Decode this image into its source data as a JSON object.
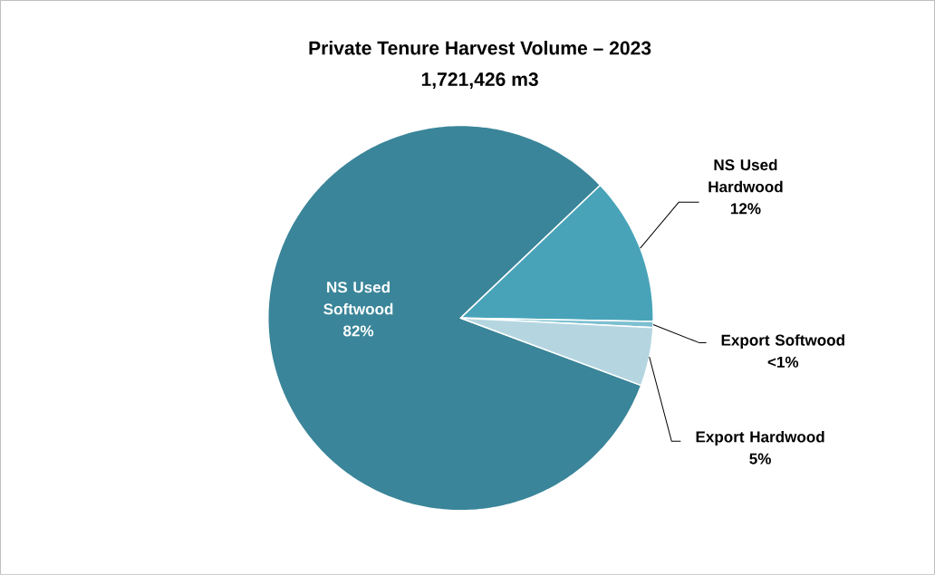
{
  "chart_data": {
    "type": "pie",
    "title": "Private Tenure Harvest Volume – 2023",
    "subtitle": "1,721,426 m3",
    "categories": [
      "NS Used Softwood",
      "NS Used Hardwood",
      "Export Softwood",
      "Export Hardwood"
    ],
    "values": [
      82.2,
      12.4,
      0.5,
      4.9
    ],
    "colors": [
      "#3a8599",
      "#48a3b9",
      "#7cc0d0",
      "#b5d6e0"
    ],
    "value_labels": [
      "82%",
      "12%",
      "<1%",
      "5%"
    ]
  }
}
